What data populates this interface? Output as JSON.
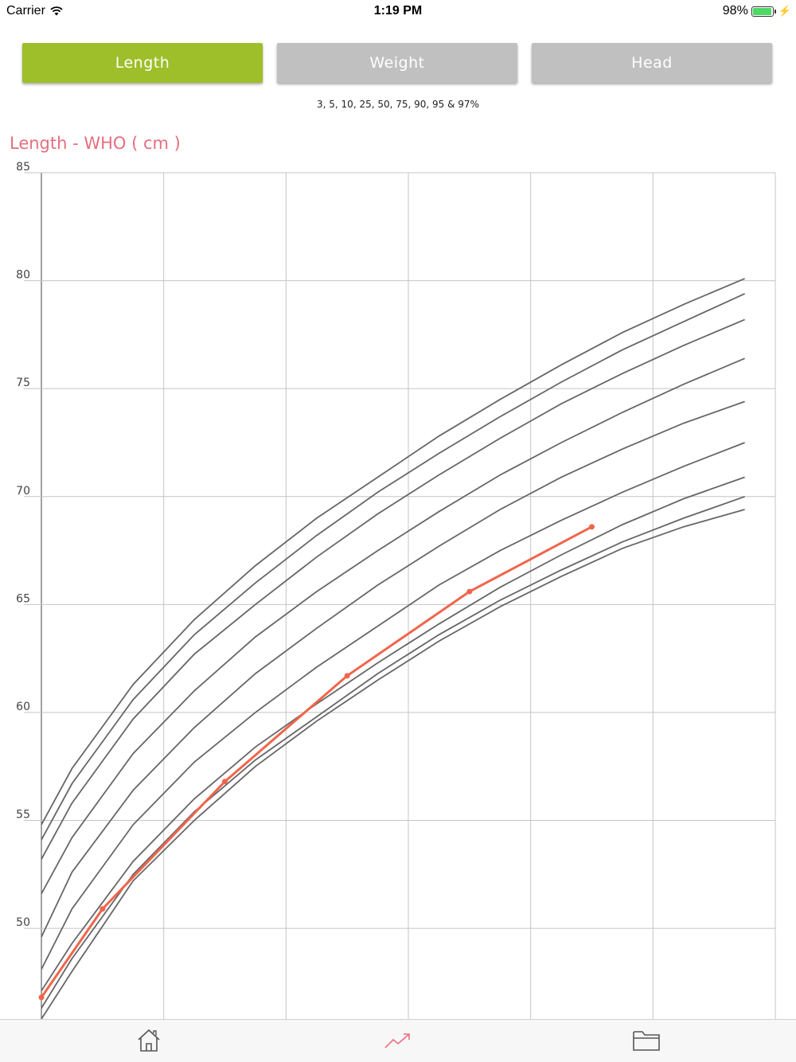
{
  "status": {
    "carrier": "Carrier",
    "time": "1:19 PM",
    "battery": "98%",
    "battery_level": 0.98
  },
  "tabs": [
    {
      "label": "Length",
      "active": true
    },
    {
      "label": "Weight",
      "active": false
    },
    {
      "label": "Head",
      "active": false
    }
  ],
  "percentile_note": "3, 5, 10, 25, 50, 75, 90, 95 & 97%",
  "colors": {
    "active_tab": "#9ebe2a",
    "inactive_tab": "#c0c0c0",
    "title": "#e66e7e",
    "child_line": "#f0654b",
    "percentile_line": "#666666",
    "grid": "#c4c4c4",
    "selected_nav": "#ee6e7e"
  },
  "chart_data": {
    "type": "line",
    "title": "Length - WHO ( cm )",
    "ylim": [
      45.8,
      85
    ],
    "xlim": [
      0,
      6
    ],
    "yticks": [
      50,
      55,
      60,
      65,
      70,
      75,
      80,
      85
    ],
    "grid": true,
    "x": [
      0,
      0.25,
      0.75,
      1.25,
      1.75,
      2.25,
      2.75,
      3.25,
      3.75,
      4.25,
      4.75,
      5.25,
      5.75
    ],
    "series": [
      {
        "values": [
          45.8,
          48.0,
          52.2,
          55.0,
          57.5,
          59.6,
          61.5,
          63.3,
          64.9,
          66.3,
          67.6,
          68.6,
          69.4
        ]
      },
      {
        "values": [
          46.3,
          48.6,
          52.5,
          55.4,
          57.8,
          59.8,
          61.8,
          63.6,
          65.2,
          66.6,
          67.9,
          69.0,
          70.0
        ]
      },
      {
        "values": [
          47.1,
          49.3,
          53.1,
          56.0,
          58.4,
          60.4,
          62.3,
          64.1,
          65.8,
          67.3,
          68.7,
          69.9,
          70.9
        ]
      },
      {
        "values": [
          48.1,
          50.9,
          54.8,
          57.7,
          60.0,
          62.1,
          64.0,
          65.9,
          67.5,
          68.9,
          70.2,
          71.4,
          72.5
        ]
      },
      {
        "values": [
          49.6,
          52.6,
          56.4,
          59.3,
          61.8,
          63.9,
          65.9,
          67.7,
          69.4,
          70.9,
          72.2,
          73.4,
          74.4
        ]
      },
      {
        "values": [
          51.6,
          54.2,
          58.1,
          61.0,
          63.5,
          65.6,
          67.5,
          69.3,
          71.0,
          72.5,
          73.9,
          75.2,
          76.4
        ]
      },
      {
        "values": [
          53.2,
          55.8,
          59.7,
          62.7,
          65.0,
          67.2,
          69.2,
          71.0,
          72.7,
          74.3,
          75.7,
          77.0,
          78.2
        ]
      },
      {
        "values": [
          54.1,
          56.7,
          60.6,
          63.6,
          66.0,
          68.2,
          70.2,
          72.0,
          73.7,
          75.3,
          76.8,
          78.1,
          79.4
        ]
      },
      {
        "values": [
          54.8,
          57.4,
          61.3,
          64.3,
          66.8,
          69.0,
          70.9,
          72.8,
          74.5,
          76.1,
          77.6,
          78.9,
          80.1
        ]
      }
    ],
    "child": {
      "x": [
        0,
        0.5,
        1.5,
        2.5,
        3.5,
        4.5
      ],
      "values": [
        46.8,
        50.9,
        56.8,
        61.7,
        65.6,
        68.6
      ]
    }
  },
  "nav": {
    "items": [
      "home-icon",
      "chart-icon",
      "folder-icon"
    ],
    "selected": 1
  }
}
